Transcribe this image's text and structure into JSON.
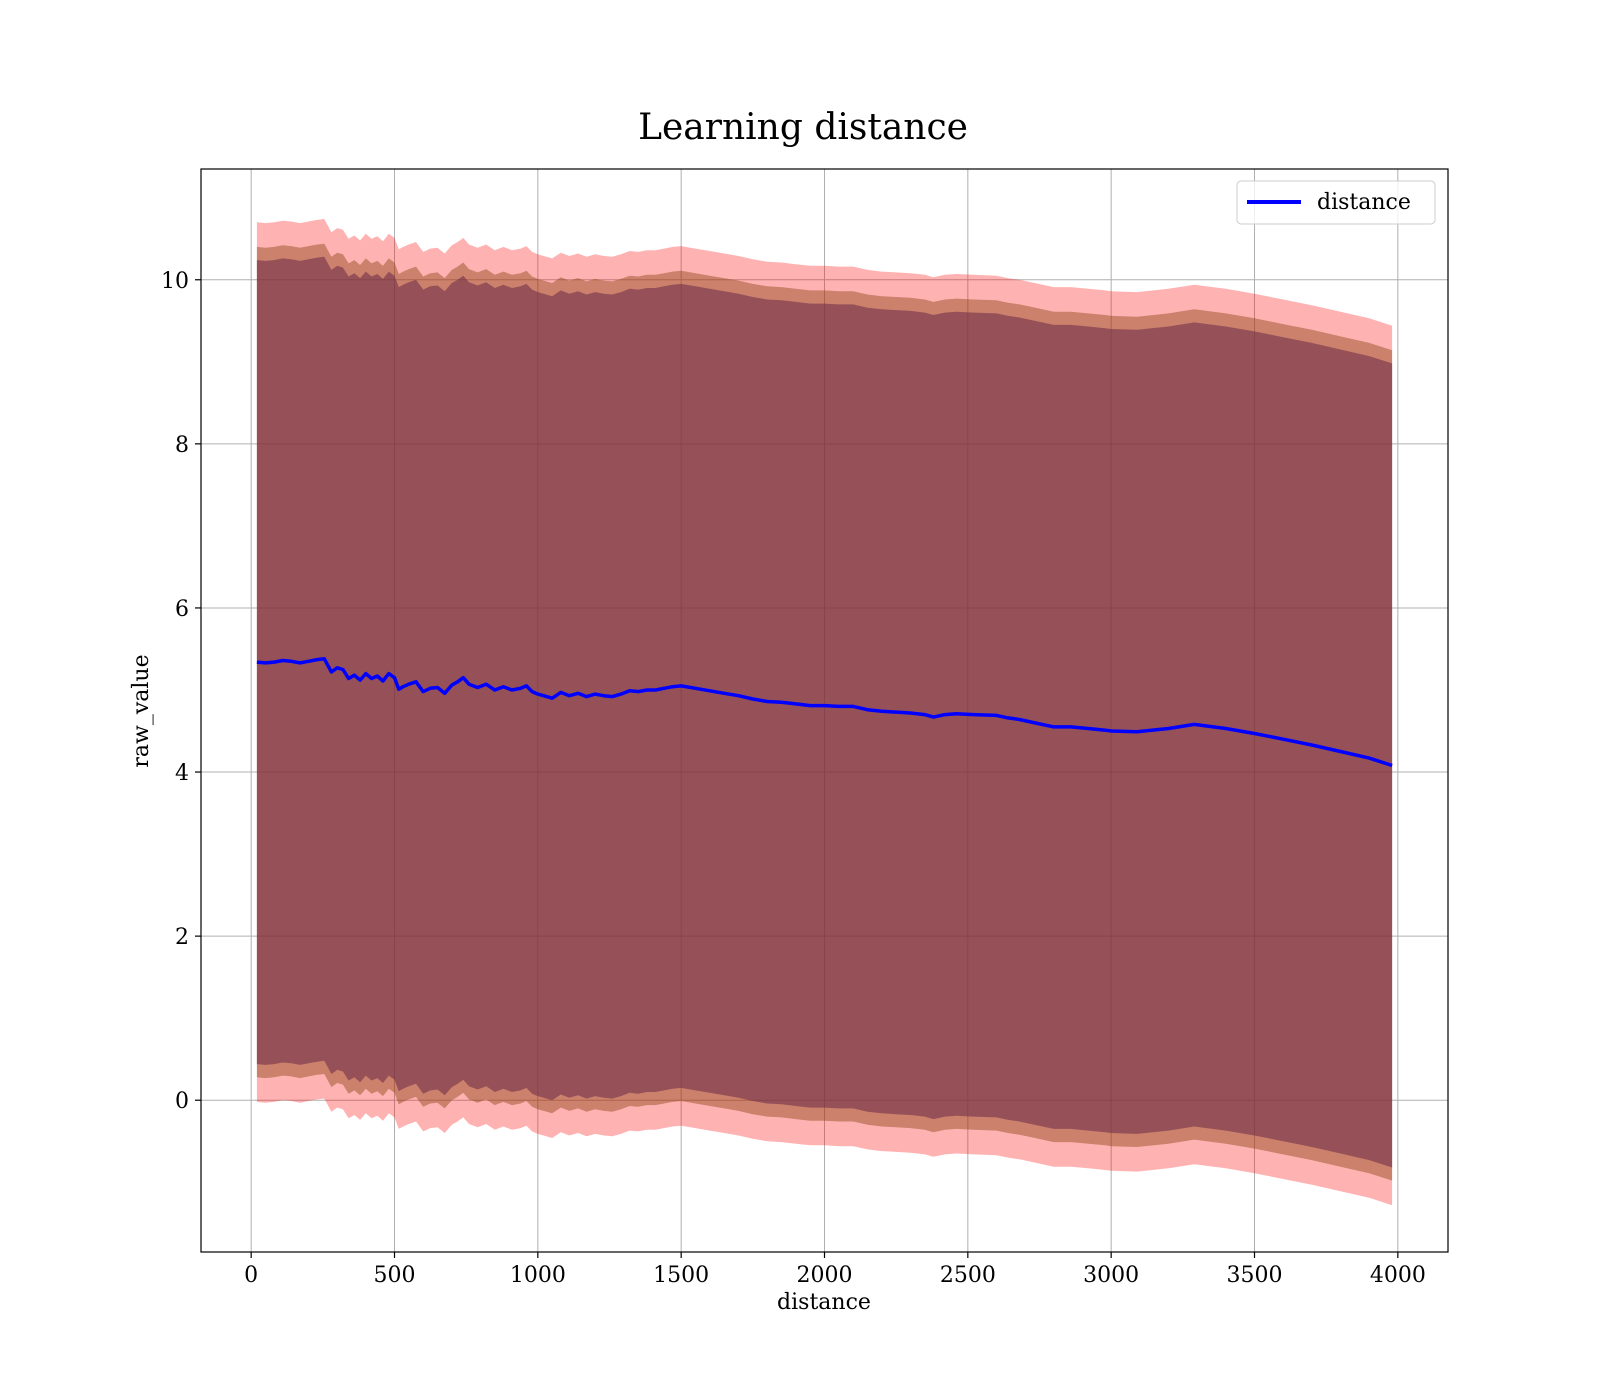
{
  "chart_data": {
    "type": "line",
    "title": "Learning distance",
    "xlabel": "distance",
    "ylabel": "raw_value",
    "xlim": [
      -175,
      4175
    ],
    "ylim": [
      -1.85,
      11.35
    ],
    "xticks": [
      0,
      500,
      1000,
      1500,
      2000,
      2500,
      3000,
      3500,
      4000
    ],
    "yticks": [
      0,
      2,
      4,
      6,
      8,
      10
    ],
    "grid": true,
    "legend_position": "upper-right",
    "colors": {
      "line": "#0000ff",
      "band_outer": "#ff0000",
      "band_middle": "#8b4513",
      "band_inner": "#6b2a48",
      "grid": "#b0b0b0"
    },
    "series": [
      {
        "name": "distance",
        "x": [
          20,
          50,
          80,
          110,
          140,
          170,
          200,
          230,
          255,
          280,
          300,
          320,
          340,
          360,
          380,
          400,
          420,
          440,
          460,
          480,
          500,
          515,
          530,
          550,
          575,
          600,
          625,
          650,
          675,
          700,
          720,
          740,
          760,
          790,
          820,
          850,
          880,
          910,
          940,
          960,
          980,
          1000,
          1020,
          1050,
          1080,
          1110,
          1140,
          1170,
          1200,
          1230,
          1260,
          1290,
          1320,
          1350,
          1380,
          1410,
          1440,
          1470,
          1500,
          1550,
          1600,
          1650,
          1700,
          1750,
          1800,
          1850,
          1900,
          1950,
          2000,
          2050,
          2100,
          2150,
          2200,
          2250,
          2300,
          2350,
          2380,
          2420,
          2460,
          2520,
          2600,
          2640,
          2680,
          2720,
          2800,
          2860,
          2920,
          2980,
          3000,
          3090,
          3200,
          3290,
          3400,
          3500,
          3600,
          3700,
          3800,
          3900,
          3980
        ],
        "values": [
          5.34,
          5.33,
          5.34,
          5.36,
          5.35,
          5.33,
          5.35,
          5.37,
          5.38,
          5.22,
          5.27,
          5.25,
          5.14,
          5.18,
          5.12,
          5.2,
          5.14,
          5.17,
          5.11,
          5.2,
          5.15,
          5.01,
          5.04,
          5.07,
          5.1,
          4.98,
          5.02,
          5.03,
          4.96,
          5.06,
          5.1,
          5.15,
          5.07,
          5.03,
          5.07,
          5.0,
          5.04,
          5.0,
          5.02,
          5.05,
          4.98,
          4.95,
          4.93,
          4.9,
          4.97,
          4.93,
          4.96,
          4.92,
          4.95,
          4.93,
          4.92,
          4.95,
          4.99,
          4.98,
          5.0,
          5.0,
          5.02,
          5.04,
          5.05,
          5.02,
          4.99,
          4.96,
          4.93,
          4.89,
          4.86,
          4.85,
          4.83,
          4.81,
          4.81,
          4.8,
          4.8,
          4.76,
          4.74,
          4.73,
          4.72,
          4.7,
          4.67,
          4.7,
          4.71,
          4.7,
          4.69,
          4.66,
          4.64,
          4.61,
          4.55,
          4.55,
          4.53,
          4.51,
          4.5,
          4.49,
          4.53,
          4.58,
          4.53,
          4.47,
          4.4,
          4.33,
          4.25,
          4.17,
          4.08
        ]
      }
    ],
    "bands": {
      "inner_halfwidth": 4.9,
      "middle_halfwidth": 5.06,
      "outer_halfwidth": 5.36
    }
  }
}
